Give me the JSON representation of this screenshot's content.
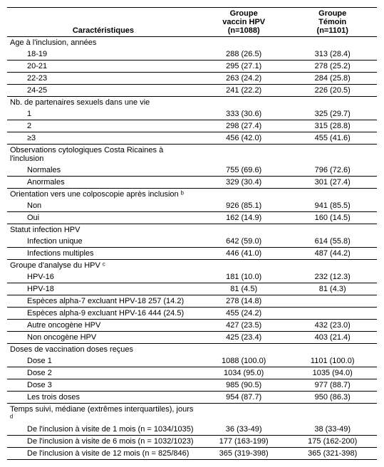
{
  "header": {
    "char": "Caractéristiques",
    "g1a": "Groupe",
    "g1b": "vaccin HPV",
    "g1c": "(n=1088)",
    "g2a": "Groupe",
    "g2b": "Témoin",
    "g2c": "(n=1101)"
  },
  "sections": [
    {
      "title": "Age à l'inclusion, années",
      "rows": [
        {
          "label": "18-19",
          "v1": "288 (26.5)",
          "v2": "313 (28.4)"
        },
        {
          "label": "20-21",
          "v1": "295 (27.1)",
          "v2": "278 (25.2)"
        },
        {
          "label": "22-23",
          "v1": "263 (24.2)",
          "v2": "284 (25.8)"
        },
        {
          "label": "24-25",
          "v1": "241 (22.2)",
          "v2": "226 (20.5)"
        }
      ]
    },
    {
      "title": "Nb. de partenaires sexuels dans une vie",
      "rows": [
        {
          "label": "1",
          "v1": "333 (30.6)",
          "v2": "325 (29.7)"
        },
        {
          "label": "2",
          "v1": "298 (27.4)",
          "v2": "315 (28.8)"
        },
        {
          "label": "≥3",
          "v1": "456 (42.0)",
          "v2": "455 (41.6)"
        }
      ]
    },
    {
      "title": "Observations cytologiques Costa Ricaines à l'inclusion",
      "first_row_inline": true,
      "rows": [
        {
          "label": "Normales",
          "v1": "755 (69.6)",
          "v2": "796 (72.6)"
        },
        {
          "label": "Anormales",
          "v1": "329 (30.4)",
          "v2": "301 (27.4)"
        }
      ]
    },
    {
      "title": "Orientation vers une colposcopie après inclusion ᵇ",
      "rows": [
        {
          "label": "Non",
          "v1": "926 (85.1)",
          "v2": "941 (85.5)"
        },
        {
          "label": "Oui",
          "v1": "162 (14.9)",
          "v2": "160 (14.5)"
        }
      ]
    },
    {
      "title": "Statut infection HPV",
      "first_row_inline": true,
      "rows": [
        {
          "label": "Infection unique",
          "v1": "642 (59.0)",
          "v2": "614 (55.8)"
        },
        {
          "label": "Infections multiples",
          "v1": "446 (41.0)",
          "v2": "487 (44.2)"
        }
      ]
    },
    {
      "title": "Groupe d'analyse du HPV ᶜ",
      "rows": [
        {
          "label": "HPV-16",
          "v1": "181 (10.0)",
          "v2": "232 (12.3)"
        },
        {
          "label": "HPV-18",
          "v1": "81 (4.5)",
          "v2": "81 (4.3)"
        },
        {
          "label": "Espèces alpha-7 excluant HPV-18 257 (14.2)",
          "v1": "278 (14.8)",
          "v2": ""
        },
        {
          "label": "Espèces alpha-9 excluant HPV-16 444 (24.5)",
          "v1": "455 (24.2)",
          "v2": ""
        },
        {
          "label": "Autre oncogène HPV",
          "v1": "427 (23.5)",
          "v2": "432 (23.0)"
        },
        {
          "label": "Non oncogène HPV",
          "v1": "425 (23.4)",
          "v2": "403 (21.4)"
        }
      ]
    },
    {
      "title": "Doses de vaccination doses reçues",
      "first_row_inline": true,
      "rows": [
        {
          "label": "Dose 1",
          "v1": "1088 (100.0)",
          "v2": "1101 (100.0)"
        },
        {
          "label": "Dose 2",
          "v1": "1034 (95.0)",
          "v2": "1035 (94.0)"
        },
        {
          "label": "Dose 3",
          "v1": "985 (90.5)",
          "v2": "977 (88.7)"
        },
        {
          "label": "Les trois doses",
          "v1": "954 (87.7)",
          "v2": "950 (86.3)"
        }
      ]
    },
    {
      "title": "Temps suivi, médiane (extrêmes interquartiles), jours ᵈ",
      "first_row_inline": true,
      "rows": [
        {
          "label": "De l'inclusion à visite de 1 mois (n = 1034/1035)",
          "v1": "36 (33-49)",
          "v2": "38 (33-49)"
        },
        {
          "label": "De l'inclusion à visite de 6 mois (n = 1032/1023)",
          "v1": "177 (163-199)",
          "v2": "175 (162-200)"
        },
        {
          "label": "De l'inclusion à visite de 12 mois (n = 825/846)",
          "v1": "365 (319-398)",
          "v2": "365 (321-398)"
        }
      ]
    }
  ]
}
